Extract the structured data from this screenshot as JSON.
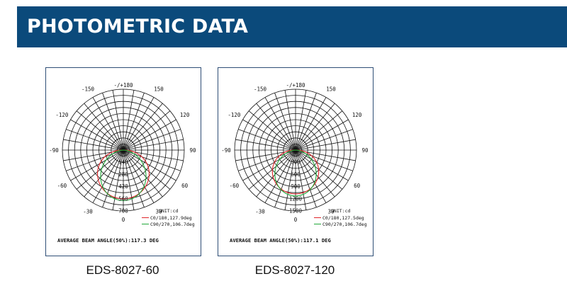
{
  "header": {
    "title": "PHOTOMETRIC DATA"
  },
  "colors": {
    "header_bg": "#0b4a7b",
    "c0_curve": "#e0262a",
    "c90_curve": "#22a83a",
    "grid": "#111111"
  },
  "chart_data": [
    {
      "type": "polar",
      "caption": "EDS-8027-60",
      "angle_labels": [
        "-/+180",
        "-150",
        "150",
        "-120",
        "120",
        "-90",
        "90",
        "-60",
        "60",
        "-30",
        "30",
        "0"
      ],
      "radial_tick_labels": [
        "140",
        "280",
        "420",
        "560",
        "700"
      ],
      "radial_max": 700,
      "unit": "UNIT:cd",
      "series": [
        {
          "name": "C0/180,127.9deg",
          "color": "#e0262a",
          "beam_angle_deg": 127.9,
          "peak_cd": 560
        },
        {
          "name": "C90/270,106.7deg",
          "color": "#22a83a",
          "beam_angle_deg": 106.7,
          "peak_cd": 580
        }
      ],
      "footer": "AVERAGE BEAM ANGLE(50%):117.3 DEG",
      "grid": true
    },
    {
      "type": "polar",
      "caption": "EDS-8027-120",
      "angle_labels": [
        "-/+180",
        "-150",
        "150",
        "-120",
        "120",
        "-90",
        "90",
        "-60",
        "60",
        "-30",
        "30",
        "0"
      ],
      "radial_tick_labels": [
        "300",
        "600",
        "900",
        "1200",
        "1500"
      ],
      "radial_max": 1500,
      "unit": "UNIT:cd",
      "series": [
        {
          "name": "C0/180,127.5deg",
          "color": "#e0262a",
          "beam_angle_deg": 127.5,
          "peak_cd": 1080
        },
        {
          "name": "C90/270,106.7deg",
          "color": "#22a83a",
          "beam_angle_deg": 106.7,
          "peak_cd": 1130
        }
      ],
      "footer": "AVERAGE BEAM ANGLE(50%):117.1 DEG",
      "grid": true
    }
  ]
}
